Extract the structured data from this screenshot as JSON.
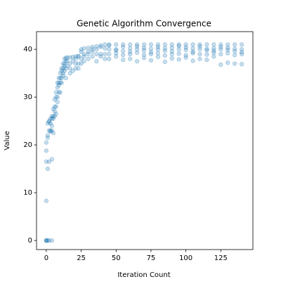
{
  "chart_data": {
    "type": "scatter",
    "title": "Genetic Algorithm Convergence",
    "xlabel": "Iteration Count",
    "ylabel": "Value",
    "color": "#1f77b4",
    "xlim": [
      -7,
      148
    ],
    "ylim": [
      -1.9,
      43.7
    ],
    "xticks": [
      0,
      25,
      50,
      75,
      100,
      125
    ],
    "yticks": [
      0,
      10,
      20,
      30,
      40
    ],
    "x": [
      0,
      0,
      0,
      0,
      0,
      0,
      0,
      1,
      1,
      1,
      1,
      1,
      2,
      2,
      2,
      2,
      2,
      3,
      3,
      3,
      3,
      4,
      4,
      4,
      4,
      4,
      4,
      5,
      5,
      5,
      5,
      6,
      6,
      6,
      6,
      7,
      7,
      7,
      7,
      8,
      8,
      8,
      8,
      9,
      9,
      9,
      9,
      10,
      10,
      10,
      10,
      11,
      11,
      11,
      11,
      12,
      12,
      12,
      12,
      13,
      13,
      13,
      13,
      14,
      14,
      14,
      14,
      15,
      15,
      15,
      17,
      17,
      17,
      17,
      19,
      19,
      19,
      21,
      21,
      21,
      21,
      23,
      23,
      23,
      23,
      25,
      25,
      25,
      25,
      27,
      27,
      27,
      27,
      30,
      30,
      30,
      30,
      33,
      33,
      33,
      33,
      36,
      36,
      36,
      36,
      39,
      39,
      39,
      39,
      42,
      42,
      42,
      42,
      45,
      45,
      45,
      45,
      45,
      50,
      50,
      50,
      50,
      50,
      55,
      55,
      55,
      55,
      55,
      60,
      60,
      60,
      60,
      60,
      65,
      65,
      65,
      65,
      65,
      70,
      70,
      70,
      70,
      70,
      75,
      75,
      75,
      75,
      75,
      80,
      80,
      80,
      80,
      80,
      85,
      85,
      85,
      85,
      85,
      90,
      90,
      90,
      90,
      90,
      95,
      95,
      95,
      95,
      95,
      100,
      100,
      100,
      100,
      100,
      105,
      105,
      105,
      105,
      105,
      110,
      110,
      110,
      110,
      110,
      115,
      115,
      115,
      115,
      115,
      120,
      120,
      120,
      120,
      120,
      125,
      125,
      125,
      125,
      125,
      130,
      130,
      130,
      130,
      130,
      135,
      135,
      135,
      135,
      135,
      140,
      140,
      140,
      140,
      140
    ],
    "values": [
      0,
      0,
      8.3,
      16.5,
      18.8,
      20.5,
      0,
      0,
      22,
      24.5,
      21.5,
      15,
      0,
      23,
      24.8,
      25,
      16.5,
      23,
      24.5,
      25.5,
      22.8,
      24,
      25.5,
      26,
      23,
      17,
      0,
      25.5,
      26,
      27.5,
      22.5,
      26,
      27,
      28,
      29.5,
      28,
      30,
      31,
      26.5,
      30,
      32,
      33,
      29,
      31,
      33,
      34,
      32.5,
      33,
      34,
      35,
      31,
      34,
      35.5,
      36,
      33,
      35,
      36,
      37,
      34.5,
      35.5,
      37,
      38,
      36.5,
      36,
      37.5,
      38.2,
      34,
      36.5,
      37.5,
      38.3,
      35,
      37,
      38.3,
      36,
      35.5,
      37.5,
      38.4,
      36,
      38,
      38.5,
      37,
      37,
      38.5,
      38.6,
      36,
      38,
      39.5,
      40,
      37,
      37.5,
      39,
      40.2,
      38.5,
      38,
      39.5,
      40.3,
      39,
      38.5,
      40,
      40.5,
      39.5,
      39,
      40,
      40.6,
      37.5,
      39,
      40.5,
      40.8,
      38.5,
      39,
      40.2,
      41,
      38,
      39,
      40,
      40.8,
      41,
      38,
      39.2,
      40,
      41,
      39.8,
      38.5,
      38.8,
      39.6,
      40.5,
      41,
      37.8,
      39,
      40.2,
      41,
      39.5,
      38,
      39.3,
      40,
      41,
      40.6,
      37.5,
      38.9,
      39.8,
      41,
      40.3,
      38.2,
      39,
      40.1,
      41,
      39.4,
      37.7,
      39.2,
      40,
      41,
      40.5,
      38.4,
      38.7,
      39.7,
      41,
      40.2,
      37.4,
      39,
      40.3,
      41,
      39.6,
      38.1,
      39.1,
      40,
      41,
      40.7,
      37.9,
      38.8,
      39.9,
      41,
      40.4,
      38.3,
      39.2,
      40.2,
      41,
      39.5,
      37.6,
      39,
      40,
      41,
      40.6,
      38,
      38.9,
      39.8,
      41,
      40.1,
      37.8,
      39.3,
      40.2,
      41,
      39.7,
      38.5,
      39,
      40,
      41,
      40.5,
      36.8,
      39.2,
      39.9,
      41,
      40.3,
      37.2,
      38.8,
      40.1,
      41,
      39.6,
      37,
      39,
      40,
      41,
      39.4,
      36.9
    ]
  }
}
